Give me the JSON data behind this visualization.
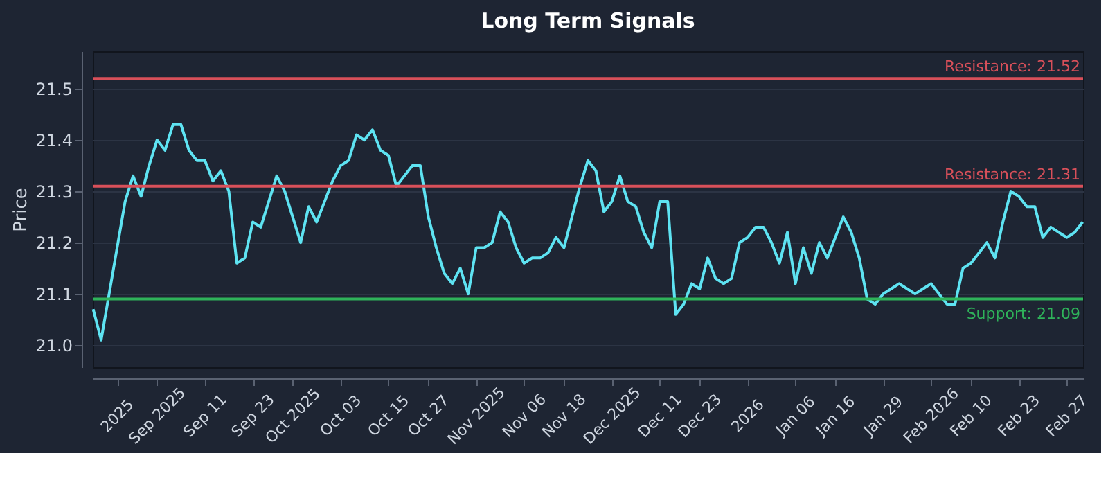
{
  "chart_data": {
    "type": "line",
    "title": "Long Term Signals",
    "ylabel": "Price",
    "categories": [
      null,
      null,
      null,
      "2025",
      null,
      null,
      null,
      null,
      "Sep 2025",
      null,
      null,
      null,
      null,
      null,
      "Sep 11",
      null,
      null,
      null,
      null,
      null,
      "Sep 23",
      null,
      null,
      null,
      null,
      "Oct 2025",
      null,
      null,
      null,
      null,
      null,
      "Oct 03",
      null,
      null,
      null,
      null,
      null,
      "Oct 15",
      null,
      null,
      null,
      null,
      "Oct 27",
      null,
      null,
      null,
      null,
      null,
      "Nov 2025",
      null,
      null,
      null,
      null,
      null,
      "Nov 06",
      null,
      null,
      null,
      null,
      "Nov 18",
      null,
      null,
      null,
      null,
      null,
      "Dec 2025",
      null,
      null,
      null,
      null,
      null,
      "Dec 11",
      null,
      null,
      null,
      null,
      "Dec 23",
      null,
      null,
      null,
      null,
      null,
      "2026",
      null,
      null,
      null,
      null,
      null,
      "Jan 06",
      null,
      null,
      null,
      null,
      "Jan 16",
      null,
      null,
      null,
      null,
      null,
      "Jan 29",
      null,
      null,
      null,
      null,
      null,
      "Feb 2026",
      null,
      null,
      null,
      null,
      "Feb 10",
      null,
      null,
      null,
      null,
      null,
      "Feb 23",
      null,
      null,
      null,
      null,
      null,
      "Feb 27",
      null,
      null
    ],
    "series": [
      {
        "color": "#5ee3f2",
        "values": [
          21.07,
          21.01,
          21.1,
          21.19,
          21.28,
          21.33,
          21.29,
          21.35,
          21.4,
          21.38,
          21.43,
          21.43,
          21.38,
          21.36,
          21.36,
          21.32,
          21.34,
          21.3,
          21.16,
          21.17,
          21.24,
          21.23,
          21.28,
          21.33,
          21.3,
          21.25,
          21.2,
          21.27,
          21.24,
          21.28,
          21.32,
          21.35,
          21.36,
          21.41,
          21.4,
          21.42,
          21.38,
          21.37,
          21.31,
          21.33,
          21.35,
          21.35,
          21.25,
          21.19,
          21.14,
          21.12,
          21.15,
          21.1,
          21.19,
          21.19,
          21.2,
          21.26,
          21.24,
          21.19,
          21.16,
          21.17,
          21.17,
          21.18,
          21.21,
          21.19,
          21.25,
          21.31,
          21.36,
          21.34,
          21.26,
          21.28,
          21.33,
          21.28,
          21.27,
          21.22,
          21.19,
          21.28,
          21.28,
          21.06,
          21.08,
          21.12,
          21.11,
          21.17,
          21.13,
          21.12,
          21.13,
          21.2,
          21.21,
          21.23,
          21.23,
          21.2,
          21.16,
          21.22,
          21.12,
          21.19,
          21.14,
          21.2,
          21.17,
          21.21,
          21.25,
          21.22,
          21.17,
          21.09,
          21.08,
          21.1,
          21.11,
          21.12,
          21.11,
          21.1,
          21.11,
          21.12,
          21.1,
          21.08,
          21.08,
          21.15,
          21.16,
          21.18,
          21.2,
          21.17,
          21.24,
          21.3,
          21.29,
          21.27,
          21.27,
          21.21,
          21.23,
          21.22,
          21.21,
          21.22,
          21.24
        ]
      }
    ],
    "ylim": [
      20.957,
      21.573
    ],
    "yticks": [
      {
        "value": 21,
        "label": "21.0"
      },
      21.1,
      21.2,
      21.3,
      21.4,
      21.5
    ],
    "grid": "y",
    "line_style": "solid",
    "ref_lines": [
      {
        "axis": "y",
        "value": 21.52,
        "label": "Resistance: 21.52",
        "color": "#d9505a"
      },
      {
        "axis": "y",
        "value": 21.31,
        "label": "Resistance: 21.31",
        "color": "#d9505a"
      },
      {
        "axis": "y",
        "value": 21.09,
        "label": "Support: 21.09",
        "color": "#2fb35a"
      }
    ]
  }
}
